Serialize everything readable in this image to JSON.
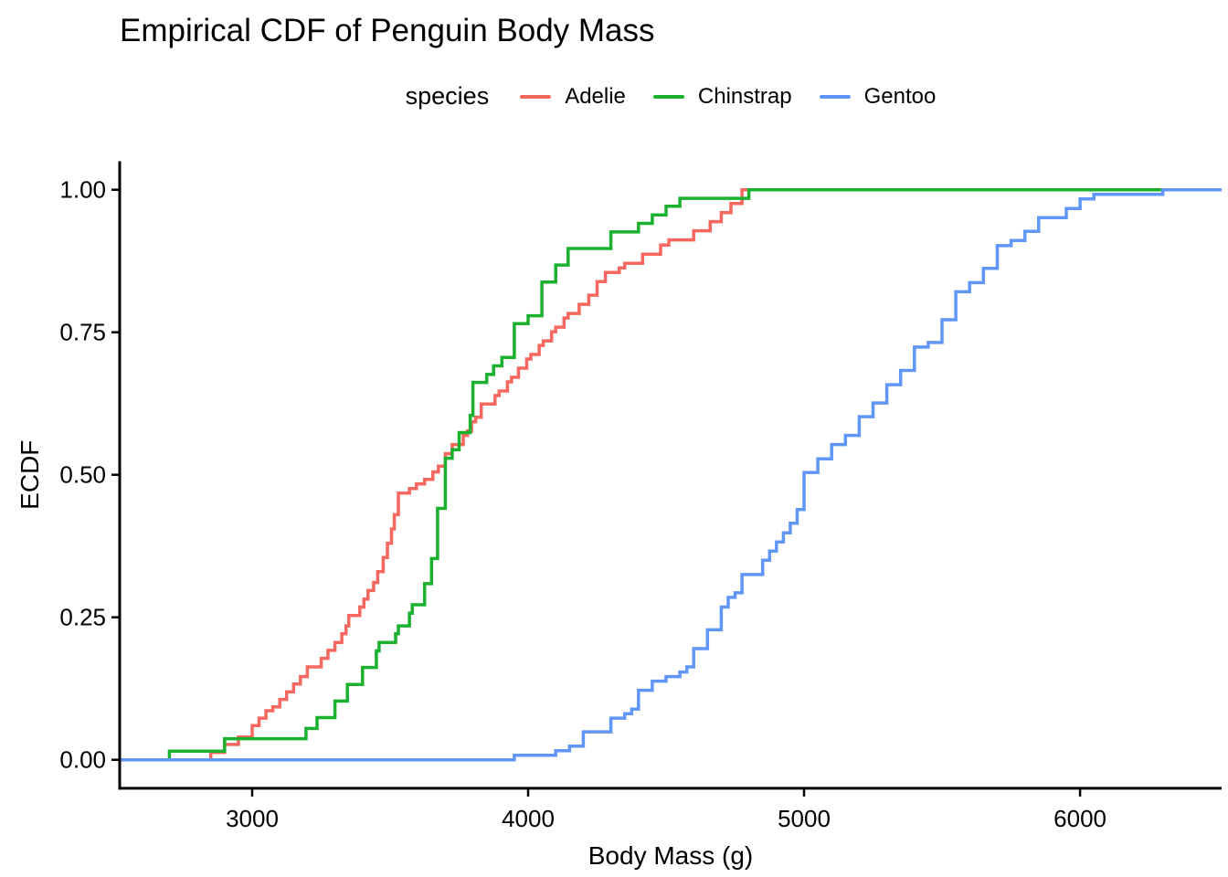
{
  "chart_data": {
    "type": "line",
    "subtype": "ecdf-step",
    "title": "Empirical CDF of Penguin Body Mass",
    "xlabel": "Body Mass (g)",
    "ylabel": "ECDF",
    "legend_title": "species",
    "legend_position": "top-center",
    "grid": false,
    "xlim": [
      2520,
      6513
    ],
    "ylim": [
      -0.05,
      1.05
    ],
    "x_ticks": [
      3000,
      4000,
      5000,
      6000
    ],
    "x_tick_labels": [
      "3000",
      "4000",
      "5000",
      "6000"
    ],
    "y_ticks": [
      0.0,
      0.25,
      0.5,
      0.75,
      1.0
    ],
    "y_tick_labels": [
      "0.00",
      "0.25",
      "0.50",
      "0.75",
      "1.00"
    ],
    "axis_color": "#000000",
    "series": [
      {
        "name": "Adelie",
        "color": "#F5675F",
        "points": [
          [
            2850,
            0.013
          ],
          [
            2900,
            0.027
          ],
          [
            2950,
            0.04
          ],
          [
            3000,
            0.06
          ],
          [
            3025,
            0.073
          ],
          [
            3050,
            0.086
          ],
          [
            3075,
            0.093
          ],
          [
            3100,
            0.106
          ],
          [
            3125,
            0.119
          ],
          [
            3150,
            0.133
          ],
          [
            3175,
            0.146
          ],
          [
            3200,
            0.163
          ],
          [
            3250,
            0.178
          ],
          [
            3275,
            0.192
          ],
          [
            3300,
            0.206
          ],
          [
            3325,
            0.221
          ],
          [
            3340,
            0.235
          ],
          [
            3350,
            0.253
          ],
          [
            3390,
            0.268
          ],
          [
            3405,
            0.282
          ],
          [
            3420,
            0.297
          ],
          [
            3440,
            0.311
          ],
          [
            3455,
            0.33
          ],
          [
            3475,
            0.355
          ],
          [
            3490,
            0.38
          ],
          [
            3505,
            0.405
          ],
          [
            3515,
            0.43
          ],
          [
            3530,
            0.468
          ],
          [
            3570,
            0.476
          ],
          [
            3595,
            0.484
          ],
          [
            3625,
            0.492
          ],
          [
            3655,
            0.505
          ],
          [
            3675,
            0.515
          ],
          [
            3700,
            0.537
          ],
          [
            3725,
            0.553
          ],
          [
            3765,
            0.569
          ],
          [
            3780,
            0.577
          ],
          [
            3795,
            0.593
          ],
          [
            3810,
            0.601
          ],
          [
            3830,
            0.624
          ],
          [
            3880,
            0.639
          ],
          [
            3895,
            0.647
          ],
          [
            3925,
            0.663
          ],
          [
            3940,
            0.671
          ],
          [
            3965,
            0.687
          ],
          [
            3995,
            0.703
          ],
          [
            4010,
            0.711
          ],
          [
            4040,
            0.727
          ],
          [
            4055,
            0.735
          ],
          [
            4085,
            0.751
          ],
          [
            4100,
            0.759
          ],
          [
            4130,
            0.775
          ],
          [
            4145,
            0.783
          ],
          [
            4185,
            0.799
          ],
          [
            4220,
            0.815
          ],
          [
            4250,
            0.839
          ],
          [
            4280,
            0.855
          ],
          [
            4330,
            0.863
          ],
          [
            4350,
            0.871
          ],
          [
            4415,
            0.887
          ],
          [
            4480,
            0.903
          ],
          [
            4510,
            0.912
          ],
          [
            4600,
            0.928
          ],
          [
            4660,
            0.944
          ],
          [
            4700,
            0.96
          ],
          [
            4735,
            0.976
          ],
          [
            4775,
            1.0
          ]
        ]
      },
      {
        "name": "Chinstrap",
        "color": "#1AB12F",
        "points": [
          [
            2700,
            0.015
          ],
          [
            2900,
            0.037
          ],
          [
            3195,
            0.055
          ],
          [
            3235,
            0.074
          ],
          [
            3300,
            0.103
          ],
          [
            3345,
            0.132
          ],
          [
            3400,
            0.162
          ],
          [
            3450,
            0.191
          ],
          [
            3460,
            0.206
          ],
          [
            3520,
            0.221
          ],
          [
            3530,
            0.235
          ],
          [
            3570,
            0.257
          ],
          [
            3580,
            0.272
          ],
          [
            3625,
            0.309
          ],
          [
            3650,
            0.353
          ],
          [
            3672,
            0.441
          ],
          [
            3700,
            0.529
          ],
          [
            3725,
            0.544
          ],
          [
            3750,
            0.574
          ],
          [
            3790,
            0.604
          ],
          [
            3800,
            0.662
          ],
          [
            3850,
            0.676
          ],
          [
            3875,
            0.691
          ],
          [
            3905,
            0.706
          ],
          [
            3950,
            0.765
          ],
          [
            4000,
            0.779
          ],
          [
            4050,
            0.838
          ],
          [
            4100,
            0.868
          ],
          [
            4145,
            0.897
          ],
          [
            4300,
            0.926
          ],
          [
            4400,
            0.941
          ],
          [
            4450,
            0.956
          ],
          [
            4500,
            0.971
          ],
          [
            4550,
            0.985
          ],
          [
            4800,
            1.0
          ]
        ]
      },
      {
        "name": "Gentoo",
        "color": "#5F96F7",
        "points": [
          [
            3950,
            0.008
          ],
          [
            4100,
            0.016
          ],
          [
            4150,
            0.024
          ],
          [
            4200,
            0.049
          ],
          [
            4300,
            0.073
          ],
          [
            4350,
            0.081
          ],
          [
            4375,
            0.089
          ],
          [
            4400,
            0.122
          ],
          [
            4450,
            0.138
          ],
          [
            4500,
            0.146
          ],
          [
            4550,
            0.154
          ],
          [
            4575,
            0.163
          ],
          [
            4600,
            0.195
          ],
          [
            4650,
            0.228
          ],
          [
            4700,
            0.268
          ],
          [
            4725,
            0.285
          ],
          [
            4750,
            0.293
          ],
          [
            4775,
            0.325
          ],
          [
            4850,
            0.35
          ],
          [
            4875,
            0.366
          ],
          [
            4900,
            0.382
          ],
          [
            4925,
            0.398
          ],
          [
            4950,
            0.415
          ],
          [
            4975,
            0.439
          ],
          [
            5000,
            0.504
          ],
          [
            5050,
            0.528
          ],
          [
            5100,
            0.553
          ],
          [
            5150,
            0.569
          ],
          [
            5200,
            0.602
          ],
          [
            5250,
            0.626
          ],
          [
            5300,
            0.658
          ],
          [
            5350,
            0.683
          ],
          [
            5400,
            0.724
          ],
          [
            5450,
            0.732
          ],
          [
            5500,
            0.772
          ],
          [
            5550,
            0.821
          ],
          [
            5600,
            0.837
          ],
          [
            5650,
            0.862
          ],
          [
            5700,
            0.902
          ],
          [
            5750,
            0.911
          ],
          [
            5800,
            0.927
          ],
          [
            5850,
            0.951
          ],
          [
            5950,
            0.967
          ],
          [
            6000,
            0.984
          ],
          [
            6050,
            0.992
          ],
          [
            6300,
            1.0
          ]
        ]
      }
    ]
  }
}
